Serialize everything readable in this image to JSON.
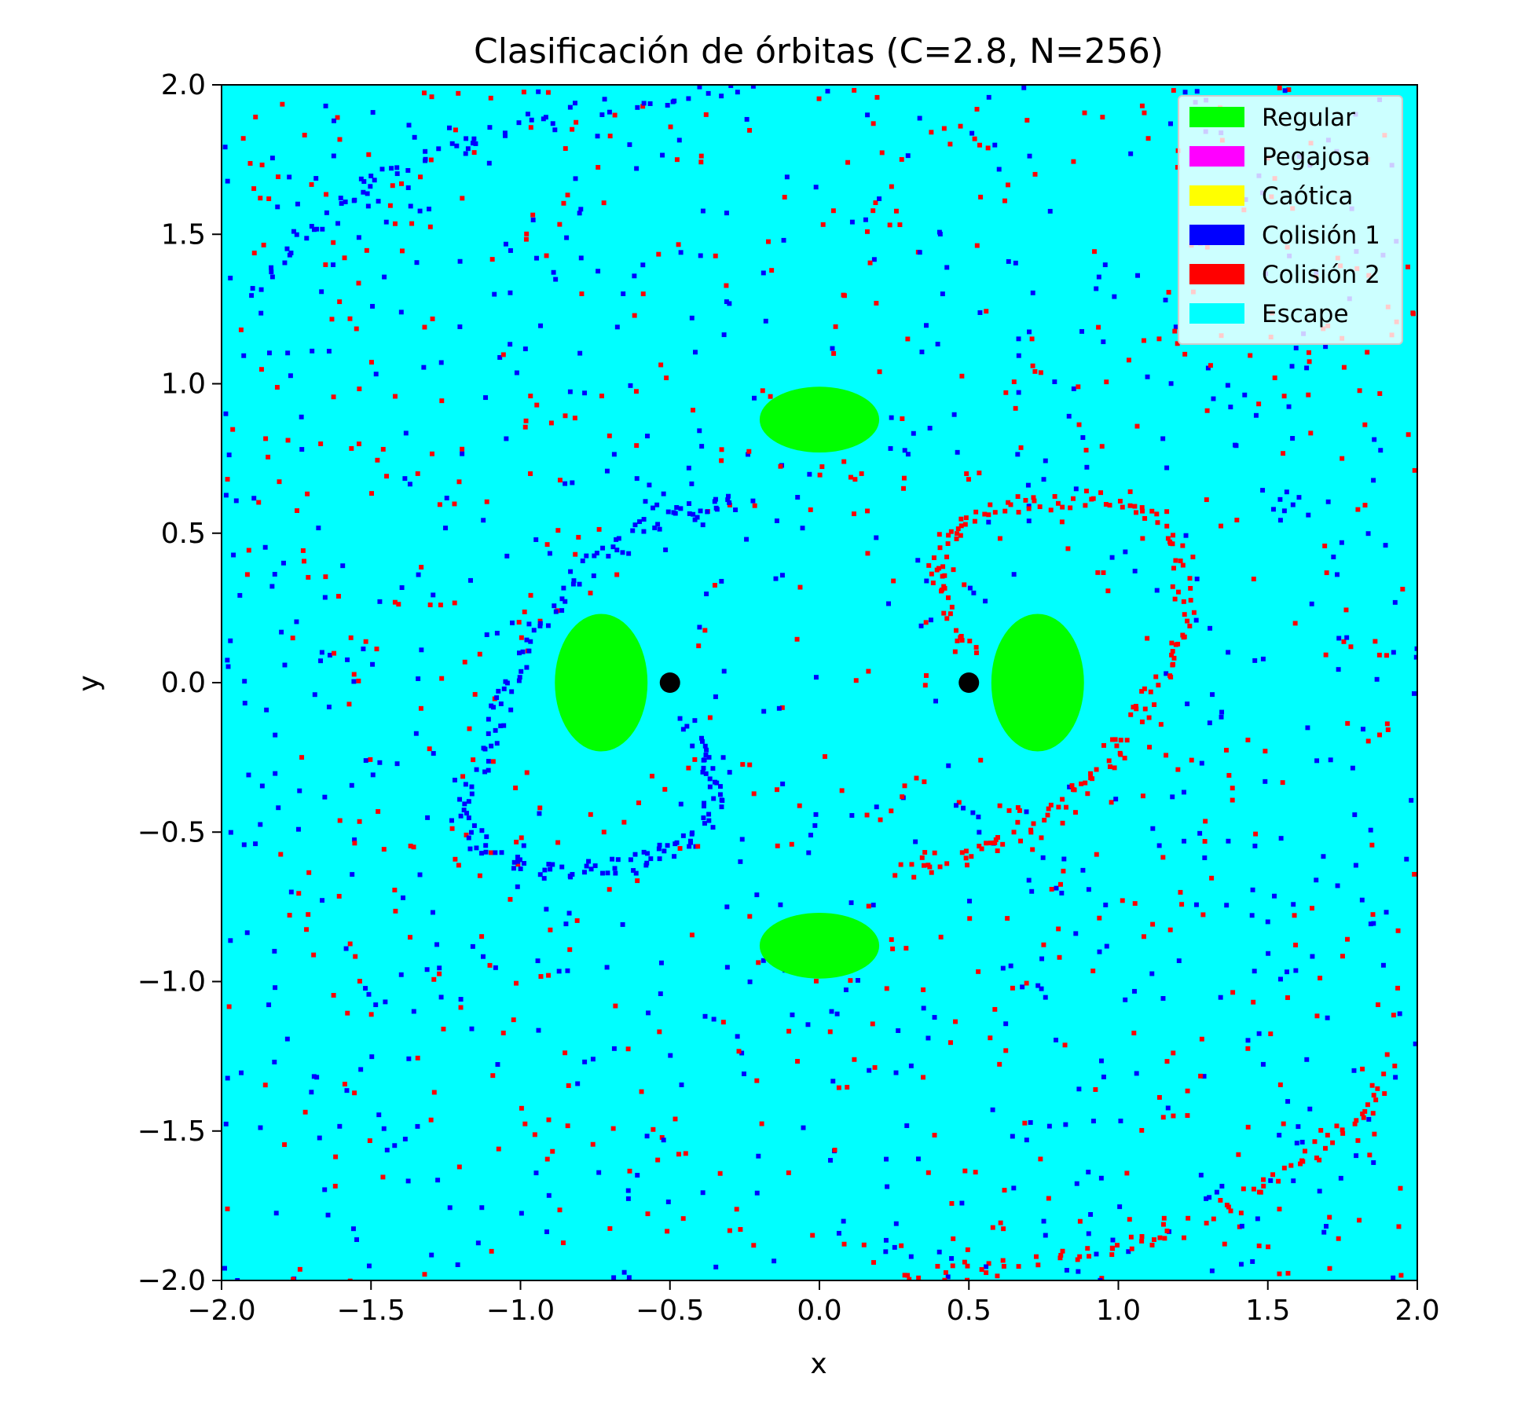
{
  "chart_data": {
    "type": "heatmap",
    "title": "Clasificación de órbitas (C=2.8, N=256)",
    "xlabel": "x",
    "ylabel": "y",
    "xlim": [
      -2.0,
      2.0
    ],
    "ylim": [
      -2.0,
      2.0
    ],
    "x_ticks": [
      "−2.0",
      "−1.5",
      "−1.0",
      "−0.5",
      "0.0",
      "0.5",
      "1.0",
      "1.5",
      "2.0"
    ],
    "y_ticks": [
      "−2.0",
      "−1.5",
      "−1.0",
      "−0.5",
      "0.0",
      "0.5",
      "1.0",
      "1.5",
      "2.0"
    ],
    "grid": false,
    "legend_position": "top-right",
    "background_class": "Escape",
    "classes": [
      {
        "name": "Regular",
        "color": "#00ff00"
      },
      {
        "name": "Pegajosa",
        "color": "#ff00ff"
      },
      {
        "name": "Caótica",
        "color": "#ffff00"
      },
      {
        "name": "Colisión 1",
        "color": "#0000ff"
      },
      {
        "name": "Colisión 2",
        "color": "#ff0000"
      },
      {
        "name": "Escape",
        "color": "#00ffff"
      }
    ],
    "primaries": [
      {
        "x": -0.5,
        "y": 0.0
      },
      {
        "x": 0.5,
        "y": 0.0
      }
    ],
    "regular_regions": [
      {
        "cx": -0.73,
        "cy": 0.0,
        "rx": 0.155,
        "ry": 0.23
      },
      {
        "cx": 0.73,
        "cy": 0.0,
        "rx": 0.155,
        "ry": 0.23
      },
      {
        "cx": 0.0,
        "cy": 0.88,
        "rx": 0.2,
        "ry": 0.11
      },
      {
        "cx": 0.0,
        "cy": -0.88,
        "rx": 0.2,
        "ry": 0.11
      }
    ],
    "collision_structures": [
      {
        "class": "Colisión 1",
        "path": [
          [
            -0.25,
            0.62
          ],
          [
            -0.45,
            0.58
          ],
          [
            -0.62,
            0.52
          ],
          [
            -0.8,
            0.38
          ],
          [
            -0.95,
            0.2
          ],
          [
            -1.05,
            0.0
          ],
          [
            -1.12,
            -0.2
          ],
          [
            -1.2,
            -0.4
          ],
          [
            -1.15,
            -0.55
          ],
          [
            -1.0,
            -0.62
          ],
          [
            -0.8,
            -0.62
          ],
          [
            -0.6,
            -0.58
          ],
          [
            -0.45,
            -0.52
          ],
          [
            -0.35,
            -0.4
          ],
          [
            -0.38,
            -0.25
          ],
          [
            -0.45,
            -0.12
          ]
        ]
      },
      {
        "class": "Colisión 2",
        "path": [
          [
            0.25,
            -0.62
          ],
          [
            0.45,
            -0.58
          ],
          [
            0.62,
            -0.52
          ],
          [
            0.8,
            -0.4
          ],
          [
            0.95,
            -0.25
          ],
          [
            1.05,
            -0.12
          ],
          [
            1.15,
            0.05
          ],
          [
            1.22,
            0.25
          ],
          [
            1.18,
            0.5
          ],
          [
            1.05,
            0.62
          ],
          [
            0.85,
            0.62
          ],
          [
            0.62,
            0.6
          ],
          [
            0.45,
            0.52
          ],
          [
            0.38,
            0.38
          ],
          [
            0.42,
            0.2
          ],
          [
            0.5,
            0.1
          ]
        ]
      },
      {
        "class": "Colisión 1",
        "path": [
          [
            -1.9,
            1.3
          ],
          [
            -1.75,
            1.5
          ],
          [
            -1.55,
            1.65
          ],
          [
            -1.3,
            1.78
          ],
          [
            -1.0,
            1.88
          ],
          [
            -0.6,
            1.96
          ],
          [
            -0.2,
            2.0
          ]
        ]
      },
      {
        "class": "Colisión 2",
        "path": [
          [
            1.9,
            -1.3
          ],
          [
            1.75,
            -1.5
          ],
          [
            1.55,
            -1.65
          ],
          [
            1.3,
            -1.78
          ],
          [
            1.0,
            -1.88
          ],
          [
            0.6,
            -1.96
          ],
          [
            0.2,
            -2.0
          ]
        ]
      }
    ]
  }
}
